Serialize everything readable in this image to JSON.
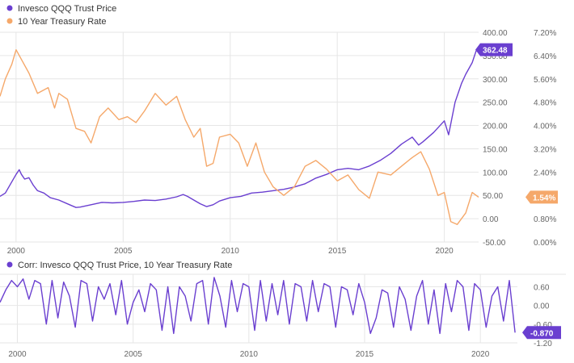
{
  "colors": {
    "qqq": "#6a3fd0",
    "treasury": "#f5a86a",
    "grid": "#e6e6e6",
    "axis": "#d0d0d0",
    "corr": "#6a3fd0"
  },
  "chart_data": [
    {
      "type": "line",
      "title": "",
      "legend": [
        {
          "name": "Invesco QQQ Trust Price",
          "color": "#6a3fd0"
        },
        {
          "name": "10 Year Treasury Rate",
          "color": "#f5a86a"
        }
      ],
      "legend_position": "top-left",
      "grid": true,
      "x_ticks": [
        "2000",
        "2005",
        "2010",
        "2015",
        "2020"
      ],
      "x_tick_values": [
        2000,
        2005,
        2010,
        2015,
        2020
      ],
      "xlim": [
        1999.25,
        2021.6
      ],
      "y_left": {
        "ticks": [
          "400.00",
          "350.00",
          "300.00",
          "250.00",
          "200.00",
          "150.00",
          "100.00",
          "50.00",
          "0.00",
          "-50.00"
        ],
        "tick_values": [
          400,
          350,
          300,
          250,
          200,
          150,
          100,
          50,
          0,
          -50
        ],
        "ylim": [
          -50,
          400
        ]
      },
      "y_right": {
        "ticks": [
          "7.20%",
          "6.40%",
          "5.60%",
          "4.80%",
          "4.00%",
          "3.20%",
          "2.40%",
          "1.60%",
          "0.80%",
          "0.00%"
        ],
        "tick_values": [
          7.2,
          6.4,
          5.6,
          4.8,
          4.0,
          3.2,
          2.4,
          1.6,
          0.8,
          0.0
        ],
        "ylim": [
          0.0,
          7.2
        ]
      },
      "series": [
        {
          "name": "Invesco QQQ Trust Price",
          "axis": "left",
          "last_value_label": "362.48",
          "x": [
            1999.25,
            1999.5,
            1999.75,
            2000.0,
            2000.15,
            2000.25,
            2000.4,
            2000.6,
            2000.8,
            2001.0,
            2001.3,
            2001.6,
            2002.0,
            2002.5,
            2002.8,
            2003.0,
            2003.5,
            2004.0,
            2004.5,
            2005.0,
            2005.5,
            2006.0,
            2006.5,
            2007.0,
            2007.5,
            2007.8,
            2008.0,
            2008.3,
            2008.6,
            2008.9,
            2009.2,
            2009.5,
            2010.0,
            2010.5,
            2011.0,
            2011.5,
            2012.0,
            2012.5,
            2013.0,
            2013.5,
            2014.0,
            2014.5,
            2015.0,
            2015.5,
            2016.0,
            2016.5,
            2017.0,
            2017.5,
            2018.0,
            2018.5,
            2018.8,
            2019.0,
            2019.5,
            2020.0,
            2020.2,
            2020.5,
            2020.8,
            2021.0,
            2021.3,
            2021.5
          ],
          "y": [
            48,
            55,
            75,
            95,
            105,
            95,
            85,
            88,
            72,
            60,
            55,
            45,
            40,
            30,
            24,
            25,
            30,
            35,
            34,
            35,
            37,
            40,
            39,
            42,
            47,
            52,
            48,
            40,
            32,
            26,
            30,
            38,
            45,
            48,
            55,
            57,
            60,
            63,
            68,
            75,
            87,
            95,
            105,
            108,
            105,
            113,
            125,
            140,
            160,
            175,
            158,
            165,
            185,
            210,
            180,
            250,
            290,
            310,
            335,
            362.48
          ]
        },
        {
          "name": "10 Year Treasury Rate",
          "axis": "right",
          "last_value_label": "1.54%",
          "x": [
            1999.25,
            1999.5,
            1999.8,
            2000.0,
            2000.3,
            2000.6,
            2001.0,
            2001.5,
            2001.8,
            2002.0,
            2002.4,
            2002.8,
            2003.2,
            2003.5,
            2003.9,
            2004.3,
            2004.8,
            2005.2,
            2005.6,
            2006.0,
            2006.5,
            2007.0,
            2007.5,
            2007.9,
            2008.3,
            2008.6,
            2008.9,
            2009.2,
            2009.5,
            2010.0,
            2010.4,
            2010.8,
            2011.2,
            2011.6,
            2012.0,
            2012.5,
            2013.0,
            2013.5,
            2014.0,
            2014.5,
            2015.0,
            2015.5,
            2016.0,
            2016.5,
            2016.9,
            2017.5,
            2018.0,
            2018.5,
            2018.9,
            2019.3,
            2019.7,
            2020.0,
            2020.3,
            2020.6,
            2021.0,
            2021.3,
            2021.6
          ],
          "y": [
            5.0,
            5.6,
            6.1,
            6.6,
            6.2,
            5.8,
            5.1,
            5.3,
            4.6,
            5.1,
            4.9,
            3.9,
            3.8,
            3.4,
            4.3,
            4.6,
            4.2,
            4.3,
            4.1,
            4.5,
            5.1,
            4.7,
            5.0,
            4.2,
            3.6,
            3.9,
            2.6,
            2.7,
            3.6,
            3.7,
            3.4,
            2.6,
            3.4,
            2.4,
            1.9,
            1.6,
            1.9,
            2.6,
            2.8,
            2.5,
            2.1,
            2.3,
            1.8,
            1.5,
            2.4,
            2.3,
            2.6,
            2.9,
            3.1,
            2.5,
            1.6,
            1.7,
            0.7,
            0.6,
            1.0,
            1.7,
            1.54
          ]
        }
      ]
    },
    {
      "type": "line",
      "title": "",
      "legend": [
        {
          "name": "Corr: Invesco QQQ Trust Price, 10 Year Treasury Rate",
          "color": "#6a3fd0"
        }
      ],
      "legend_position": "top-left",
      "grid": true,
      "x_ticks": [
        "2000",
        "2005",
        "2010",
        "2015",
        "2020"
      ],
      "x_tick_values": [
        2000,
        2005,
        2010,
        2015,
        2020
      ],
      "xlim": [
        1999.25,
        2021.6
      ],
      "y_right": {
        "ticks": [
          "0.60",
          "0.00",
          "-0.60",
          "-1.20"
        ],
        "tick_values": [
          0.6,
          0.0,
          -0.6,
          -1.2
        ],
        "ylim": [
          -1.2,
          1.0
        ]
      },
      "series": [
        {
          "name": "Corr: Invesco QQQ Trust Price, 10 Year Treasury Rate",
          "axis": "right",
          "last_value_label": "-0.870",
          "x": [
            1999.25,
            1999.5,
            1999.75,
            2000.0,
            2000.25,
            2000.5,
            2000.75,
            2001.0,
            2001.25,
            2001.5,
            2001.75,
            2002.0,
            2002.25,
            2002.5,
            2002.75,
            2003.0,
            2003.25,
            2003.5,
            2003.75,
            2004.0,
            2004.25,
            2004.5,
            2004.75,
            2005.0,
            2005.25,
            2005.5,
            2005.75,
            2006.0,
            2006.25,
            2006.5,
            2006.75,
            2007.0,
            2007.25,
            2007.5,
            2007.75,
            2008.0,
            2008.25,
            2008.5,
            2008.75,
            2009.0,
            2009.25,
            2009.5,
            2009.75,
            2010.0,
            2010.25,
            2010.5,
            2010.75,
            2011.0,
            2011.25,
            2011.5,
            2011.75,
            2012.0,
            2012.25,
            2012.5,
            2012.75,
            2013.0,
            2013.25,
            2013.5,
            2013.75,
            2014.0,
            2014.25,
            2014.5,
            2014.75,
            2015.0,
            2015.25,
            2015.5,
            2015.75,
            2016.0,
            2016.25,
            2016.5,
            2016.75,
            2017.0,
            2017.25,
            2017.5,
            2017.75,
            2018.0,
            2018.25,
            2018.5,
            2018.75,
            2019.0,
            2019.25,
            2019.5,
            2019.75,
            2020.0,
            2020.25,
            2020.5,
            2020.75,
            2021.0,
            2021.25,
            2021.5
          ],
          "y": [
            0.1,
            0.5,
            0.8,
            0.6,
            0.85,
            0.2,
            0.8,
            0.7,
            -0.6,
            0.8,
            -0.4,
            0.75,
            0.3,
            -0.7,
            0.8,
            0.7,
            -0.5,
            0.6,
            0.2,
            0.7,
            -0.3,
            0.8,
            -0.6,
            0.1,
            0.5,
            -0.2,
            0.7,
            0.5,
            -0.8,
            0.6,
            -0.9,
            0.6,
            0.3,
            -0.5,
            0.7,
            0.8,
            -0.6,
            0.9,
            0.3,
            -0.7,
            0.8,
            -0.2,
            0.7,
            0.6,
            -0.8,
            0.8,
            -0.5,
            0.7,
            -0.3,
            0.8,
            -0.6,
            0.7,
            0.6,
            -0.5,
            0.8,
            -0.2,
            0.7,
            0.6,
            -0.7,
            0.6,
            0.5,
            -0.3,
            0.7,
            0.1,
            -0.9,
            -0.4,
            0.5,
            0.4,
            -0.7,
            0.6,
            0.2,
            -0.8,
            0.3,
            0.8,
            -0.6,
            0.5,
            -0.9,
            0.7,
            -0.2,
            0.8,
            0.6,
            -0.8,
            0.7,
            0.5,
            -0.7,
            0.3,
            0.6,
            -0.5,
            0.8,
            -0.87
          ]
        }
      ]
    }
  ]
}
